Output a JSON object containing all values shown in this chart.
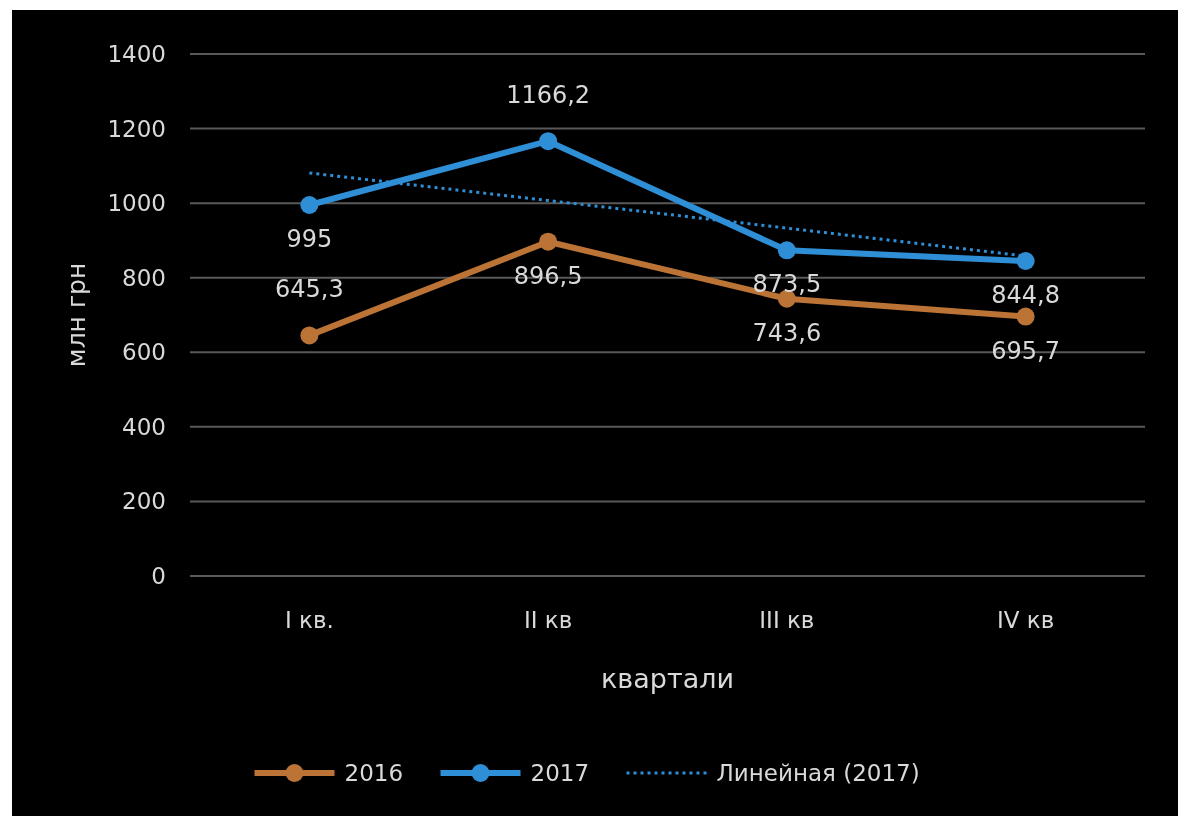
{
  "chart_data": {
    "type": "line",
    "xlabel": "квартали",
    "ylabel": "млн грн",
    "categories": [
      "І кв.",
      "ІІ кв",
      "ІІІ кв",
      "ІV кв"
    ],
    "series": [
      {
        "name": "2016",
        "color": "#bb7436",
        "values": [
          645.3,
          896.5,
          743.6,
          695.7
        ],
        "value_labels": [
          "645,3",
          "896,5",
          "743,6",
          "695,7"
        ],
        "marker": "circle",
        "line_style": "solid"
      },
      {
        "name": "2017",
        "color": "#2f8fd6",
        "values": [
          995,
          1166.2,
          873.5,
          844.8
        ],
        "value_labels": [
          "995",
          "1166,2",
          "873,5",
          "844,8"
        ],
        "marker": "circle",
        "line_style": "solid"
      },
      {
        "name": "Линейная (2017)",
        "color": "#2f8fd6",
        "values": [
          1081,
          1007,
          933,
          858
        ],
        "marker": "none",
        "line_style": "dotted"
      }
    ],
    "ylim": [
      0,
      1400
    ],
    "yticks": [
      0,
      200,
      400,
      600,
      800,
      1000,
      1200,
      1400
    ],
    "grid": "y",
    "legend": "bottom"
  }
}
